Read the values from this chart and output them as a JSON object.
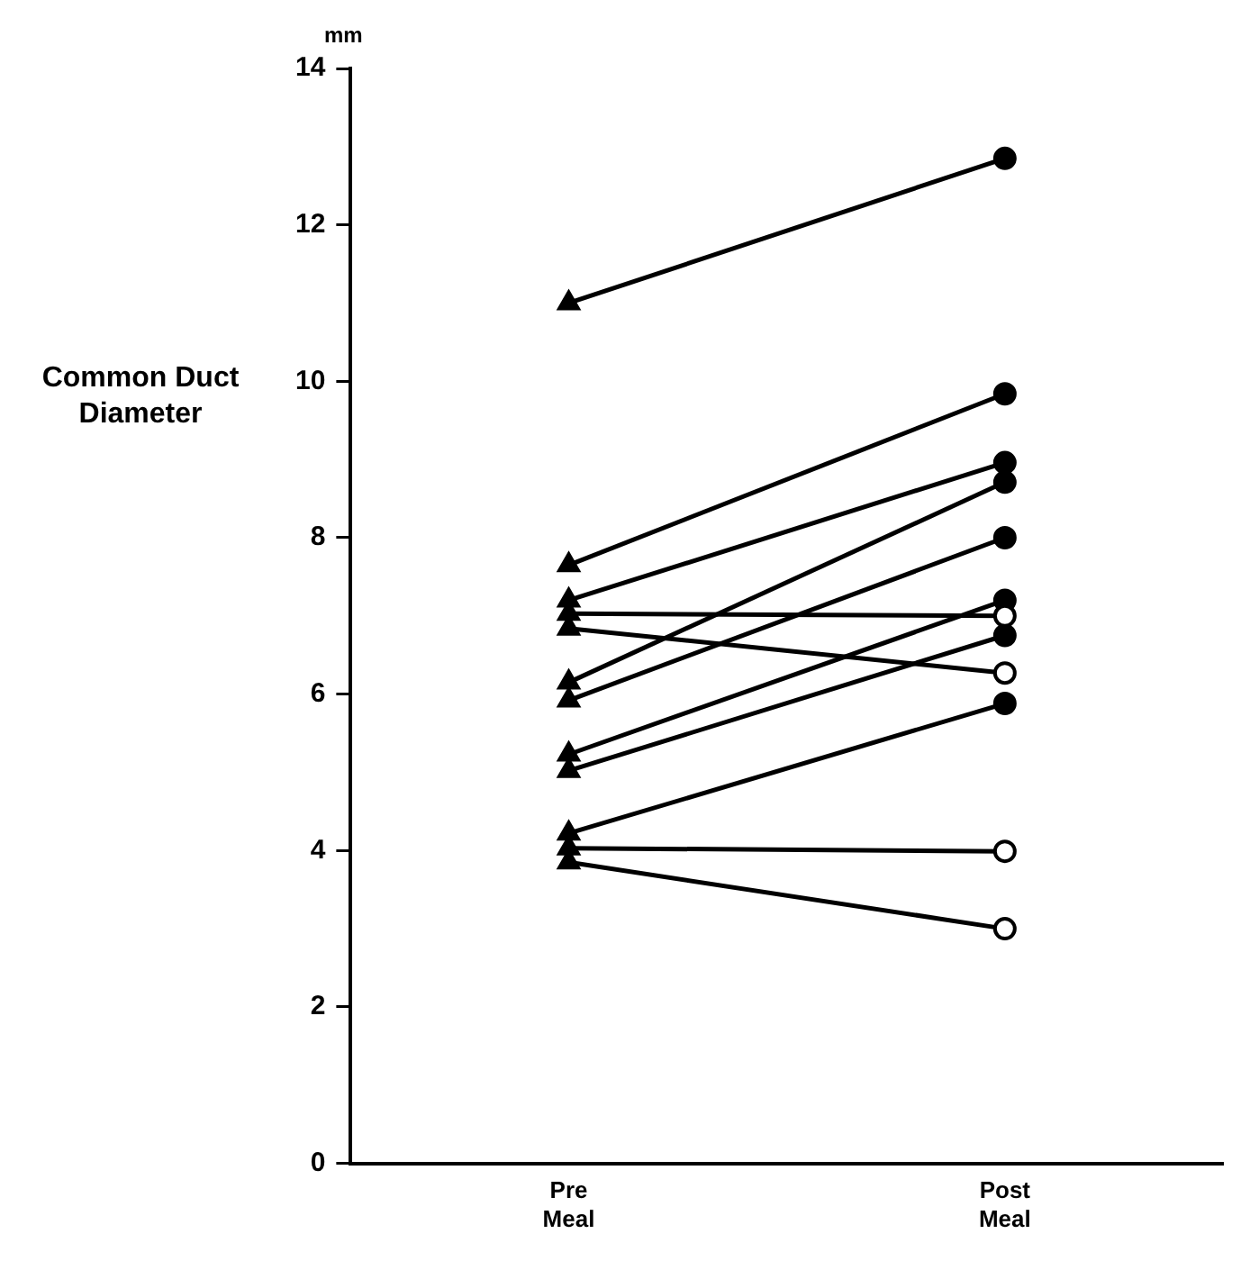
{
  "chart_data": {
    "type": "line",
    "ylabel": "Common Duct Diameter",
    "annotations": [
      "mm"
    ],
    "categories": [
      "Pre Meal",
      "Post Meal"
    ],
    "ylim": [
      0,
      14
    ],
    "yticks": [
      0,
      2,
      4,
      6,
      8,
      10,
      12,
      14
    ],
    "grid": false,
    "legend": false,
    "series": [
      {
        "color": "#000000",
        "marker": [
          "triangle",
          "circle"
        ],
        "colors": [
          "#000000",
          "#000000"
        ],
        "values": [
          11.0,
          12.85
        ]
      },
      {
        "color": "#000000",
        "marker": [
          "triangle",
          "circle"
        ],
        "colors": [
          "#000000",
          "#000000"
        ],
        "values": [
          7.65,
          9.84
        ]
      },
      {
        "color": "#000000",
        "marker": [
          "triangle",
          "circle"
        ],
        "colors": [
          "#000000",
          "#000000"
        ],
        "values": [
          7.2,
          8.96
        ]
      },
      {
        "color": "#000000",
        "marker": [
          "triangle",
          "circle"
        ],
        "colors": [
          "#000000",
          "#000000"
        ],
        "values": [
          6.15,
          8.71
        ]
      },
      {
        "color": "#000000",
        "marker": [
          "triangle",
          "circle"
        ],
        "colors": [
          "#000000",
          "#000000"
        ],
        "values": [
          5.92,
          8.0
        ]
      },
      {
        "color": "#000000",
        "marker": [
          "triangle",
          "circle"
        ],
        "colors": [
          "#000000",
          "#ffffff"
        ],
        "values": [
          7.03,
          7.0
        ]
      },
      {
        "color": "#000000",
        "marker": [
          "triangle",
          "circle"
        ],
        "colors": [
          "#000000",
          "#ffffff"
        ],
        "values": [
          6.84,
          6.27
        ]
      },
      {
        "color": "#000000",
        "marker": [
          "triangle",
          "circle"
        ],
        "colors": [
          "#000000",
          "#000000"
        ],
        "values": [
          5.23,
          7.2
        ]
      },
      {
        "color": "#000000",
        "marker": [
          "triangle",
          "circle"
        ],
        "colors": [
          "#000000",
          "#000000"
        ],
        "values": [
          5.02,
          6.75
        ]
      },
      {
        "color": "#000000",
        "marker": [
          "triangle",
          "circle"
        ],
        "colors": [
          "#000000",
          "#000000"
        ],
        "values": [
          4.22,
          5.88
        ]
      },
      {
        "color": "#000000",
        "marker": [
          "triangle",
          "circle"
        ],
        "colors": [
          "#000000",
          "#ffffff"
        ],
        "values": [
          4.03,
          3.99
        ]
      },
      {
        "color": "#000000",
        "marker": [
          "triangle",
          "circle"
        ],
        "colors": [
          "#000000",
          "#ffffff"
        ],
        "values": [
          3.85,
          3.0
        ]
      }
    ]
  }
}
